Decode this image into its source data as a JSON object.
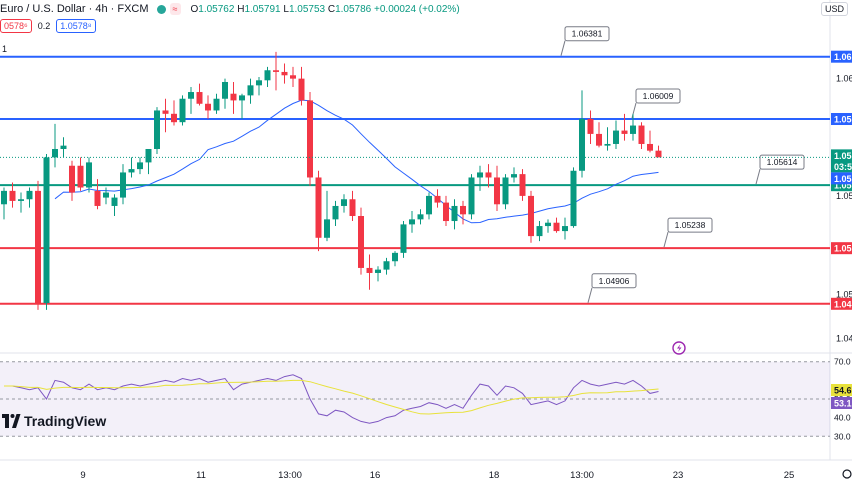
{
  "header": {
    "symbol": "Euro / U.S. Dollar · 4h · FXCM",
    "badge": "≈",
    "ohlc": {
      "o": "1.05762",
      "h": "1.05791",
      "l": "1.05753",
      "c": "1.05786",
      "chg": "+0.00024 (+0.02%)"
    },
    "bid": "0578⁶",
    "spread": "0.2",
    "ask": "1.0578⁸",
    "currency": "USD",
    "interval_count": "1"
  },
  "logo": "TradingView",
  "colors": {
    "up": "#089981",
    "down": "#f23645",
    "blue_line": "#2962ff",
    "green_line": "#089981",
    "red_line": "#f23645",
    "ma": "#2962ff",
    "rsi": "#7e57c2",
    "rsi_ma": "#e8e23b"
  },
  "chart_data": {
    "type": "candlestick",
    "x_ticks": [
      "9",
      "11",
      "13:00",
      "16",
      "18",
      "13:00",
      "23",
      "25"
    ],
    "y_ticks": [
      "1.06",
      "1.05",
      "1.05",
      "1.04"
    ],
    "y_range": [
      1.0466,
      1.066
    ],
    "horizontal_levels": [
      {
        "value": 1.06381,
        "label": "1.06381",
        "color": "#2962ff",
        "axis_label": "1.06"
      },
      {
        "value": 1.06009,
        "label": "1.06009",
        "color": "#2962ff",
        "axis_label": "1.05"
      },
      {
        "value": 1.05614,
        "label": "1.05614",
        "color": "#089981",
        "axis_label": "1.05"
      },
      {
        "value": 1.05238,
        "label": "1.05238",
        "color": "#f23645",
        "axis_label": "1.05"
      },
      {
        "value": 1.04906,
        "label": "1.04906",
        "color": "#f23645",
        "axis_label": "1.04"
      }
    ],
    "price_axis_badges": [
      {
        "text": "1.05",
        "color": "#089981"
      },
      {
        "text": "03:5",
        "color": "#089981"
      },
      {
        "text": "1.05",
        "color": "#2962ff"
      }
    ],
    "candles": [
      [
        1.055,
        1.056,
        1.0541,
        1.0558
      ],
      [
        1.0558,
        1.0563,
        1.0548,
        1.0552
      ],
      [
        1.0552,
        1.0557,
        1.0545,
        1.0553
      ],
      [
        1.0553,
        1.056,
        1.0548,
        1.0558
      ],
      [
        1.0558,
        1.0564,
        1.0487,
        1.0491
      ],
      [
        1.0491,
        1.058,
        1.0487,
        1.0578
      ],
      [
        1.0578,
        1.0598,
        1.0572,
        1.0583
      ],
      [
        1.0583,
        1.059,
        1.0578,
        1.0585
      ],
      [
        1.0573,
        1.0576,
        1.0552,
        1.0557
      ],
      [
        1.0573,
        1.0578,
        1.0558,
        1.056
      ],
      [
        1.056,
        1.0578,
        1.0557,
        1.0575
      ],
      [
        1.0558,
        1.0565,
        1.0547,
        1.0549
      ],
      [
        1.0554,
        1.056,
        1.055,
        1.0557
      ],
      [
        1.0549,
        1.0556,
        1.0543,
        1.0554
      ],
      [
        1.0554,
        1.0574,
        1.055,
        1.0569
      ],
      [
        1.0569,
        1.0578,
        1.0566,
        1.0571
      ],
      [
        1.0571,
        1.0578,
        1.0568,
        1.0575
      ],
      [
        1.0575,
        1.0583,
        1.0568,
        1.0583
      ],
      [
        1.0583,
        1.0608,
        1.058,
        1.0606
      ],
      [
        1.0606,
        1.0613,
        1.0593,
        1.0604
      ],
      [
        1.0604,
        1.0612,
        1.0597,
        1.0599
      ],
      [
        1.0599,
        1.0615,
        1.0597,
        1.0613
      ],
      [
        1.0613,
        1.062,
        1.0604,
        1.0617
      ],
      [
        1.0617,
        1.0622,
        1.0609,
        1.061
      ],
      [
        1.061,
        1.0615,
        1.0601,
        1.0606
      ],
      [
        1.0606,
        1.0616,
        1.0604,
        1.0613
      ],
      [
        1.0613,
        1.0625,
        1.0607,
        1.0623
      ],
      [
        1.0616,
        1.0623,
        1.0604,
        1.0612
      ],
      [
        1.0612,
        1.0616,
        1.0601,
        1.0615
      ],
      [
        1.0615,
        1.0625,
        1.061,
        1.0621
      ],
      [
        1.0621,
        1.0626,
        1.0615,
        1.0624
      ],
      [
        1.0624,
        1.0632,
        1.062,
        1.063
      ],
      [
        1.063,
        1.0641,
        1.0618,
        1.0629
      ],
      [
        1.0629,
        1.0634,
        1.0622,
        1.0627
      ],
      [
        1.0627,
        1.0632,
        1.062,
        1.0625
      ],
      [
        1.0625,
        1.0632,
        1.0609,
        1.0612
      ],
      [
        1.0612,
        1.0617,
        1.0561,
        1.0566
      ],
      [
        1.0566,
        1.057,
        1.0522,
        1.053
      ],
      [
        1.053,
        1.0558,
        1.0528,
        1.0541
      ],
      [
        1.0541,
        1.0552,
        1.0537,
        1.0549
      ],
      [
        1.0549,
        1.0556,
        1.0545,
        1.0553
      ],
      [
        1.0553,
        1.0558,
        1.054,
        1.0543
      ],
      [
        1.0543,
        1.0548,
        1.0508,
        1.0512
      ],
      [
        1.0512,
        1.052,
        1.0499,
        1.0509
      ],
      [
        1.0509,
        1.0513,
        1.0504,
        1.0511
      ],
      [
        1.0511,
        1.0518,
        1.0508,
        1.0516
      ],
      [
        1.0516,
        1.0522,
        1.0513,
        1.0521
      ],
      [
        1.0521,
        1.054,
        1.0518,
        1.0538
      ],
      [
        1.0538,
        1.0546,
        1.0533,
        1.0541
      ],
      [
        1.0541,
        1.0547,
        1.0538,
        1.0544
      ],
      [
        1.0544,
        1.0557,
        1.0541,
        1.0555
      ],
      [
        1.0555,
        1.0559,
        1.0548,
        1.0551
      ],
      [
        1.0551,
        1.0555,
        1.0537,
        1.054
      ],
      [
        1.054,
        1.0553,
        1.0535,
        1.0549
      ],
      [
        1.0549,
        1.0552,
        1.0538,
        1.0544
      ],
      [
        1.0544,
        1.0568,
        1.0541,
        1.0566
      ],
      [
        1.0566,
        1.0573,
        1.0558,
        1.0569
      ],
      [
        1.0569,
        1.0574,
        1.056,
        1.0566
      ],
      [
        1.0566,
        1.0573,
        1.0546,
        1.055
      ],
      [
        1.055,
        1.0568,
        1.0547,
        1.0566
      ],
      [
        1.0566,
        1.0572,
        1.0563,
        1.0568
      ],
      [
        1.0568,
        1.0571,
        1.0552,
        1.0555
      ],
      [
        1.0555,
        1.0558,
        1.0527,
        1.0531
      ],
      [
        1.0531,
        1.054,
        1.0528,
        1.0537
      ],
      [
        1.0537,
        1.0541,
        1.0533,
        1.0539
      ],
      [
        1.0539,
        1.0542,
        1.0533,
        1.0534
      ],
      [
        1.0534,
        1.0542,
        1.0529,
        1.0537
      ],
      [
        1.0537,
        1.0572,
        1.0536,
        1.057
      ],
      [
        1.057,
        1.0618,
        1.0566,
        1.0601
      ],
      [
        1.0601,
        1.0606,
        1.0586,
        1.0592
      ],
      [
        1.0592,
        1.0599,
        1.0584,
        1.0585
      ],
      [
        1.0585,
        1.0596,
        1.0582,
        1.0586
      ],
      [
        1.0586,
        1.06,
        1.0583,
        1.0594
      ],
      [
        1.0594,
        1.0604,
        1.0588,
        1.0592
      ],
      [
        1.0592,
        1.0604,
        1.0588,
        1.0597
      ],
      [
        1.0597,
        1.0599,
        1.0583,
        1.0586
      ],
      [
        1.0586,
        1.0594,
        1.0581,
        1.0582
      ],
      [
        1.0582,
        1.0585,
        1.0579,
        1.0578
      ]
    ],
    "ma_line": true,
    "rsi": {
      "ticks": [
        "70.0",
        "50.0",
        "40.0",
        "30.0"
      ],
      "range": [
        28,
        72
      ],
      "badges": [
        {
          "text": "54.6",
          "color": "#e8e23b"
        },
        {
          "text": "53.1",
          "color": "#7e57c2"
        }
      ],
      "values": [
        57,
        57,
        56,
        55,
        56,
        50,
        60,
        59,
        56,
        55,
        58,
        55,
        56,
        55,
        57,
        58,
        57,
        58,
        59,
        60,
        59,
        61,
        60,
        61,
        59,
        60,
        61,
        55,
        58,
        59,
        60,
        61,
        60,
        62,
        63,
        61,
        50,
        42,
        41,
        44,
        43,
        40,
        38,
        37,
        38,
        40,
        41,
        44,
        45,
        46,
        48,
        47,
        45,
        47,
        45,
        52,
        58,
        57,
        52,
        57,
        56,
        53,
        47,
        48,
        49,
        47,
        49,
        56,
        60,
        58,
        57,
        58,
        59,
        58,
        60,
        57,
        53,
        54
      ]
    }
  }
}
